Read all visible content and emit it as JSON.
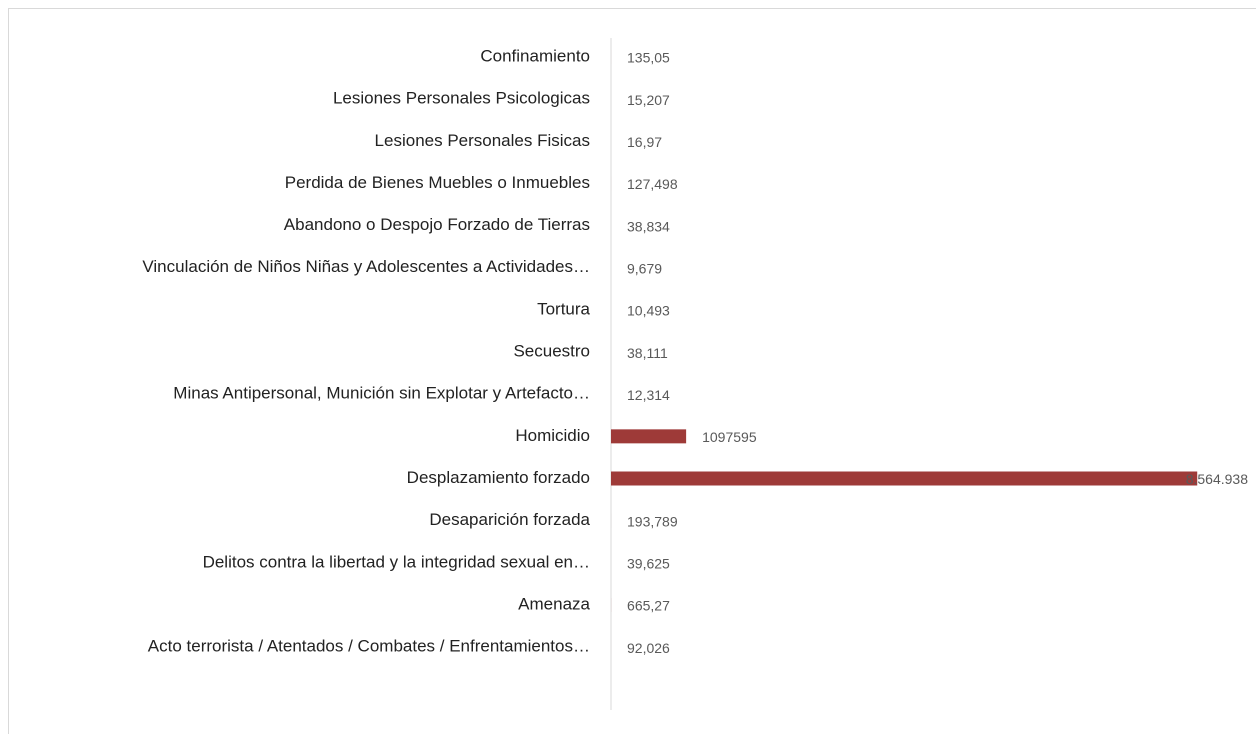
{
  "chart_data": {
    "type": "barh",
    "categories": [
      "Confinamiento",
      "Lesiones Personales Psicologicas",
      "Lesiones Personales Fisicas",
      "Perdida de Bienes Muebles o Inmuebles",
      "Abandono o Despojo Forzado de Tierras",
      "Vinculación de Niños Niñas y Adolescentes a Actividades…",
      "Tortura",
      "Secuestro",
      "Minas Antipersonal, Munición sin Explotar y Artefacto…",
      "Homicidio",
      "Desplazamiento forzado",
      "Desaparición forzada",
      "Delitos contra la libertad y la integridad sexual en…",
      "Amenaza",
      "Acto terrorista / Atentados / Combates / Enfrentamientos…"
    ],
    "values": [
      135.05,
      15.207,
      16.97,
      127.498,
      38.834,
      9.679,
      10.493,
      38.111,
      12.314,
      1097595,
      8564938,
      193.789,
      39.625,
      665.27,
      92.026
    ],
    "value_labels": [
      "135,05",
      "15,207",
      "16,97",
      "127,498",
      "38,834",
      "9,679",
      "10,493",
      "38,111",
      "12,314",
      "1097595",
      "8.564.938",
      "193,789",
      "39,625",
      "665,27",
      "92,026"
    ],
    "color": "#9e3a38",
    "xlim": [
      0,
      9000000
    ]
  }
}
